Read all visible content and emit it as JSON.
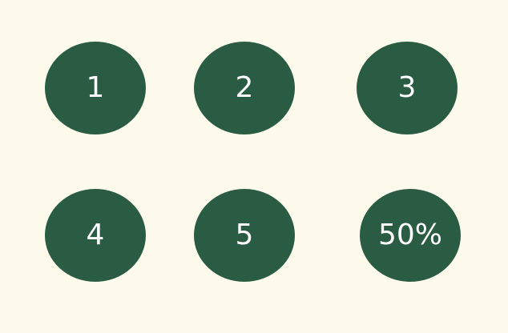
{
  "circles": [
    {
      "label": "1"
    },
    {
      "label": "2"
    },
    {
      "label": "3"
    },
    {
      "label": "4"
    },
    {
      "label": "5"
    },
    {
      "label": "50%"
    }
  ],
  "colors": {
    "background": "#fefaeb",
    "circle_fill": "#295c43",
    "text": "#ffffff"
  }
}
